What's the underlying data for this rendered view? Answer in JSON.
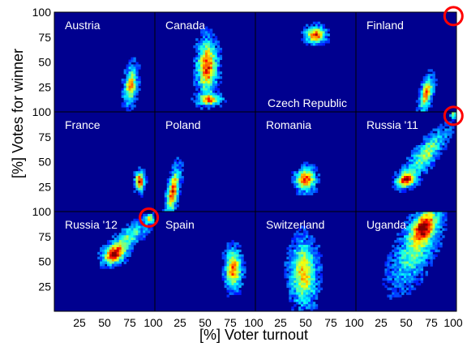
{
  "chart_data": {
    "type": "heatmap",
    "title": "",
    "xlabel": "[%] Voter turnout",
    "ylabel": "[%] Votes for winner",
    "layout": "3 rows x 4 columns of small-multiple 2D histograms",
    "colormap": "jet",
    "background_color": "#00008f",
    "xlim": [
      0,
      100
    ],
    "ylim": [
      0,
      100
    ],
    "x_ticks": [
      "25",
      "50",
      "75",
      "100"
    ],
    "y_ticks": [
      "25",
      "50",
      "75",
      "100"
    ],
    "highlight_color": "#ff0000",
    "panels": [
      {
        "name": "Austria",
        "label_position": "top-left",
        "blobs": [
          {
            "x": 76,
            "y": 26,
            "sx": 4,
            "sy": 12,
            "rho": 0.3,
            "peak": 0.75
          }
        ]
      },
      {
        "name": "Canada",
        "label_position": "top-left",
        "blobs": [
          {
            "x": 52,
            "y": 45,
            "sx": 6,
            "sy": 16,
            "rho": 0,
            "peak": 0.95
          },
          {
            "x": 54,
            "y": 12,
            "sx": 7,
            "sy": 3.5,
            "rho": 0,
            "peak": 0.8
          }
        ]
      },
      {
        "name": "Czech Republic",
        "label_position": "bottom-center",
        "blobs": [
          {
            "x": 60,
            "y": 77,
            "sx": 6,
            "sy": 5,
            "rho": 0,
            "peak": 0.95
          }
        ]
      },
      {
        "name": "Finland",
        "label_position": "top-left",
        "blobs": [
          {
            "x": 70,
            "y": 18,
            "sx": 4,
            "sy": 10,
            "rho": 0.5,
            "peak": 0.85
          }
        ]
      },
      {
        "name": "France",
        "label_position": "top-left",
        "blobs": [
          {
            "x": 85,
            "y": 30,
            "sx": 2.8,
            "sy": 6,
            "rho": 0,
            "peak": 1.0
          }
        ]
      },
      {
        "name": "Poland",
        "label_position": "top-left",
        "blobs": [
          {
            "x": 18,
            "y": 20,
            "sx": 4,
            "sy": 14,
            "rho": 0.6,
            "peak": 0.95
          }
        ]
      },
      {
        "name": "Romania",
        "label_position": "top-left",
        "blobs": [
          {
            "x": 50,
            "y": 32,
            "sx": 6,
            "sy": 7,
            "rho": 0,
            "peak": 0.9
          }
        ]
      },
      {
        "name": "Russia '11",
        "label_position": "top-left",
        "blobs": [
          {
            "x": 50,
            "y": 32,
            "sx": 6,
            "sy": 5,
            "rho": 0.2,
            "peak": 1.0
          },
          {
            "x": 70,
            "y": 58,
            "sx": 12,
            "sy": 14,
            "rho": 0.8,
            "peak": 0.55
          },
          {
            "x": 97,
            "y": 97,
            "sx": 2,
            "sy": 2,
            "rho": 0,
            "peak": 0.6
          }
        ]
      },
      {
        "name": "Russia '12",
        "label_position": "top-left",
        "blobs": [
          {
            "x": 60,
            "y": 57,
            "sx": 7,
            "sy": 6,
            "rho": 0.3,
            "peak": 1.0
          },
          {
            "x": 74,
            "y": 74,
            "sx": 12,
            "sy": 10,
            "rho": 0.75,
            "peak": 0.45
          },
          {
            "x": 95,
            "y": 93,
            "sx": 2.5,
            "sy": 3,
            "rho": 0,
            "peak": 0.65
          }
        ]
      },
      {
        "name": "Spain",
        "label_position": "top-left",
        "blobs": [
          {
            "x": 78,
            "y": 42,
            "sx": 5,
            "sy": 12,
            "rho": 0,
            "peak": 0.85
          }
        ]
      },
      {
        "name": "Switzerland",
        "label_position": "top-left",
        "blobs": [
          {
            "x": 48,
            "y": 38,
            "sx": 8,
            "sy": 20,
            "rho": 0,
            "peak": 0.7
          }
        ]
      },
      {
        "name": "Uganda",
        "label_position": "top-left",
        "blobs": [
          {
            "x": 68,
            "y": 85,
            "sx": 8,
            "sy": 10,
            "rho": 0.4,
            "peak": 0.95
          },
          {
            "x": 58,
            "y": 60,
            "sx": 14,
            "sy": 22,
            "rho": 0.6,
            "peak": 0.45
          }
        ]
      }
    ],
    "highlights": [
      {
        "panel": 3,
        "x": 97,
        "y": 96,
        "shape": "circle"
      },
      {
        "panel": 7,
        "x": 97,
        "y": 96,
        "shape": "circle"
      },
      {
        "panel": 8,
        "x": 94,
        "y": 94,
        "shape": "circle"
      }
    ]
  }
}
